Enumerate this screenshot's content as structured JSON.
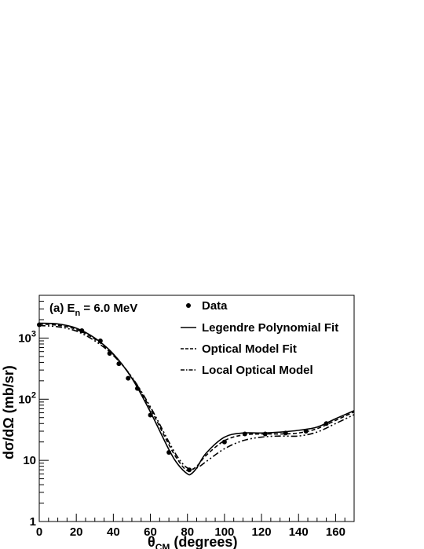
{
  "chart_data": {
    "type": "line",
    "panel_label": "(a) E",
    "panel_label_sub": "n",
    "panel_label_rest": " = 6.0 MeV",
    "xlabel": "θ",
    "xlabel_sub": "CM",
    "xlabel_rest": " (degrees)",
    "ylabel": "dσ/dΩ (mb/sr)",
    "xlim": [
      0,
      170
    ],
    "ylim": [
      1,
      5000
    ],
    "ylog": true,
    "x_ticks": [
      "0",
      "20",
      "40",
      "60",
      "80",
      "100",
      "120",
      "140",
      "160"
    ],
    "x_tick_values": [
      0,
      20,
      40,
      60,
      80,
      100,
      120,
      140,
      160
    ],
    "y_ticks": [
      {
        "value": 1,
        "base": "1",
        "exp": ""
      },
      {
        "value": 10,
        "base": "10",
        "exp": ""
      },
      {
        "value": 100,
        "base": "10",
        "exp": "2"
      },
      {
        "value": 1000,
        "base": "10",
        "exp": "3"
      }
    ],
    "legend_position": "top-right",
    "legend": [
      {
        "name": "Data",
        "style": "marker"
      },
      {
        "name": "Legendre Polynomial Fit",
        "style": "solid"
      },
      {
        "name": "Optical Model Fit",
        "style": "dashed"
      },
      {
        "name": "Local Optical Model",
        "style": "dashdot"
      }
    ],
    "data_points": {
      "x": [
        0,
        23,
        33,
        38,
        43,
        48,
        53,
        60,
        70,
        81,
        100,
        111,
        122,
        133,
        144,
        155
      ],
      "y": [
        1650,
        1320,
        900,
        560,
        380,
        220,
        150,
        55,
        13.5,
        7,
        20,
        27,
        27,
        28,
        30,
        40
      ]
    },
    "series": [
      {
        "name": "Legendre Polynomial Fit",
        "x": [
          0,
          10,
          20,
          30,
          40,
          50,
          60,
          70,
          75,
          80,
          82,
          85,
          90,
          100,
          110,
          120,
          130,
          140,
          150,
          160,
          170
        ],
        "y": [
          1750,
          1700,
          1450,
          1000,
          550,
          220,
          62,
          15,
          8.5,
          6.0,
          6.0,
          7.5,
          13,
          24,
          28,
          28,
          29,
          31,
          35,
          48,
          65
        ]
      },
      {
        "name": "Optical Model Fit",
        "x": [
          0,
          10,
          20,
          30,
          40,
          50,
          60,
          70,
          75,
          80,
          85,
          90,
          100,
          110,
          120,
          130,
          140,
          150,
          160,
          170
        ],
        "y": [
          1700,
          1620,
          1380,
          960,
          540,
          225,
          70,
          18,
          10,
          6.8,
          8,
          12,
          21,
          26,
          27,
          27,
          28,
          33,
          45,
          62
        ]
      },
      {
        "name": "Local Optical Model",
        "x": [
          0,
          10,
          20,
          30,
          40,
          50,
          60,
          70,
          75,
          80,
          85,
          90,
          100,
          110,
          120,
          130,
          140,
          150,
          160,
          170
        ],
        "y": [
          1600,
          1530,
          1300,
          900,
          520,
          230,
          75,
          20,
          11,
          7.5,
          7.5,
          9.5,
          15.5,
          21,
          24,
          25,
          25,
          29,
          40,
          56
        ]
      }
    ]
  }
}
